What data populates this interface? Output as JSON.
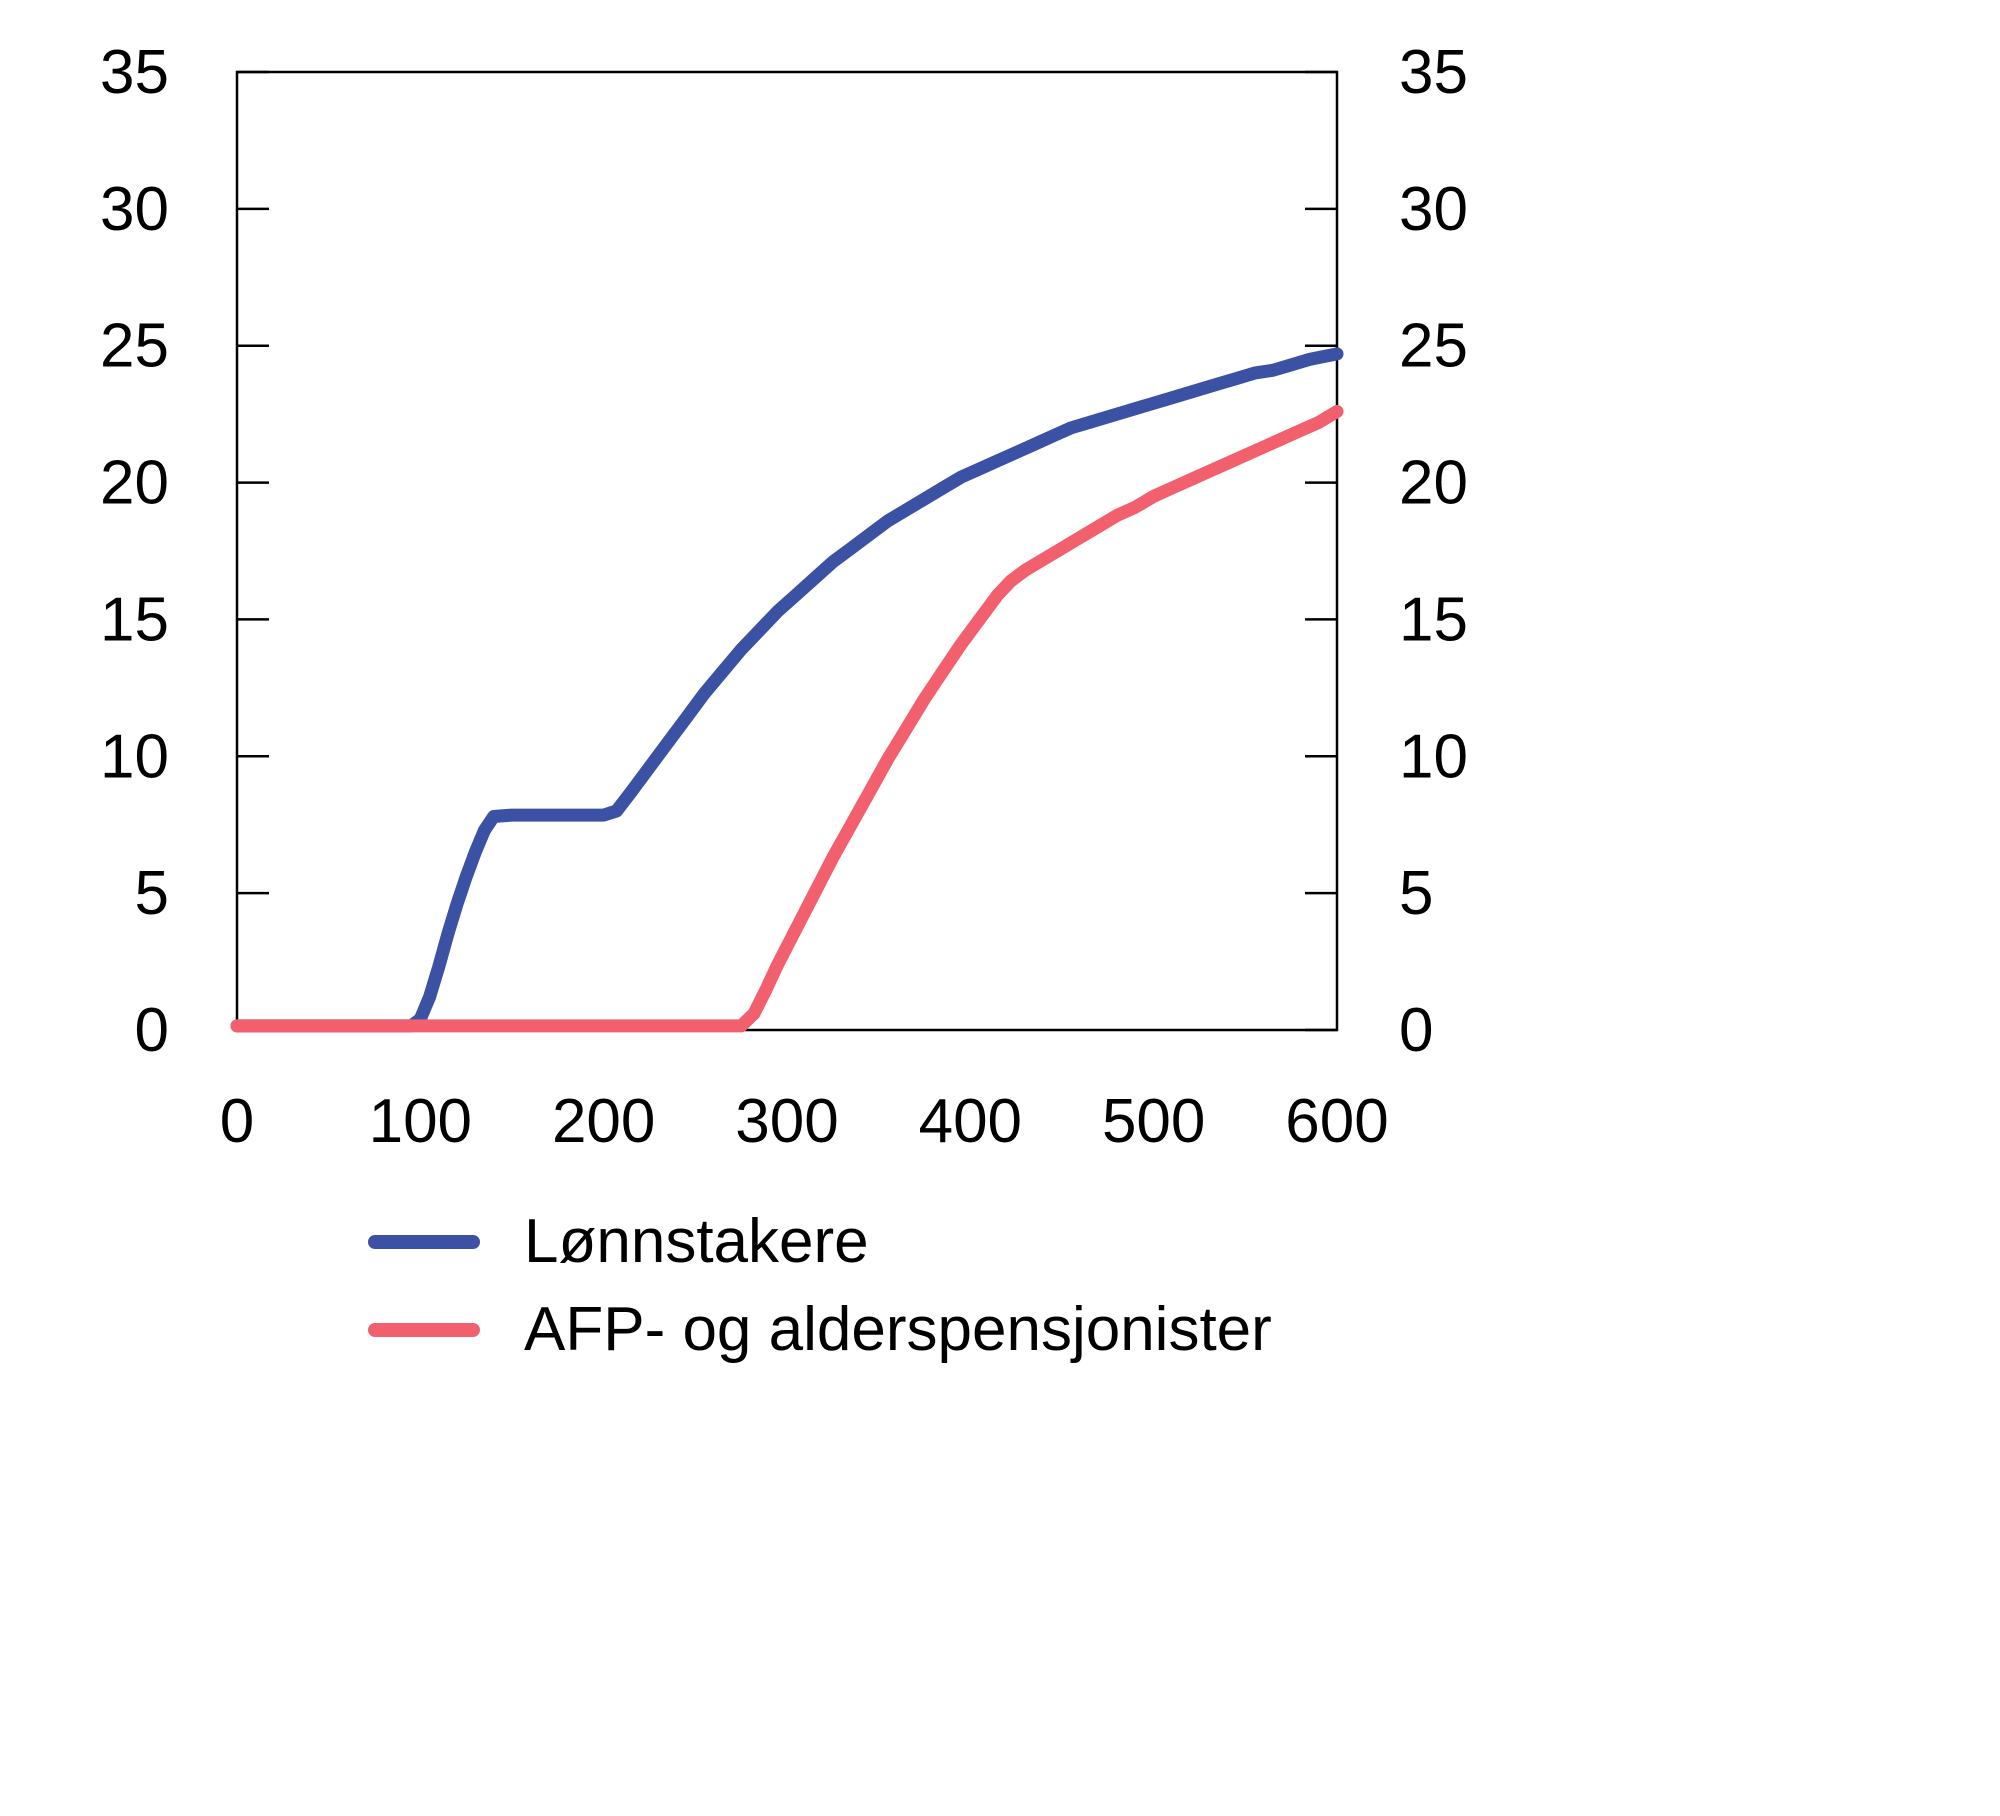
{
  "chart_data": {
    "type": "line",
    "title": "",
    "xlabel": "",
    "ylabel": "",
    "xlim": [
      0,
      600
    ],
    "ylim": [
      0,
      35
    ],
    "x_ticks": [
      0,
      100,
      200,
      300,
      400,
      500,
      600
    ],
    "y_ticks": [
      0,
      5,
      10,
      15,
      20,
      25,
      30,
      35
    ],
    "y_axis_right_mirror": true,
    "grid": false,
    "legend_position": "bottom-left",
    "series": [
      {
        "name": "Lønnstakere",
        "color": "#3b51a3",
        "points": [
          [
            0,
            0.15
          ],
          [
            95,
            0.15
          ],
          [
            100,
            0.4
          ],
          [
            105,
            1.2
          ],
          [
            110,
            2.3
          ],
          [
            115,
            3.5
          ],
          [
            120,
            4.6
          ],
          [
            125,
            5.6
          ],
          [
            130,
            6.5
          ],
          [
            135,
            7.3
          ],
          [
            140,
            7.8
          ],
          [
            150,
            7.85
          ],
          [
            200,
            7.85
          ],
          [
            207,
            8.0
          ],
          [
            215,
            8.7
          ],
          [
            225,
            9.6
          ],
          [
            235,
            10.5
          ],
          [
            245,
            11.4
          ],
          [
            255,
            12.3
          ],
          [
            265,
            13.1
          ],
          [
            275,
            13.9
          ],
          [
            285,
            14.6
          ],
          [
            295,
            15.3
          ],
          [
            305,
            15.9
          ],
          [
            315,
            16.5
          ],
          [
            325,
            17.1
          ],
          [
            335,
            17.6
          ],
          [
            345,
            18.1
          ],
          [
            355,
            18.6
          ],
          [
            365,
            19.0
          ],
          [
            375,
            19.4
          ],
          [
            385,
            19.8
          ],
          [
            395,
            20.2
          ],
          [
            405,
            20.5
          ],
          [
            415,
            20.8
          ],
          [
            425,
            21.1
          ],
          [
            435,
            21.4
          ],
          [
            445,
            21.7
          ],
          [
            455,
            22.0
          ],
          [
            465,
            22.2
          ],
          [
            475,
            22.4
          ],
          [
            485,
            22.6
          ],
          [
            495,
            22.8
          ],
          [
            505,
            23.0
          ],
          [
            515,
            23.2
          ],
          [
            525,
            23.4
          ],
          [
            535,
            23.6
          ],
          [
            545,
            23.8
          ],
          [
            555,
            24.0
          ],
          [
            565,
            24.1
          ],
          [
            575,
            24.3
          ],
          [
            585,
            24.5
          ],
          [
            600,
            24.7
          ]
        ]
      },
      {
        "name": "AFP- og alderspensjonister",
        "color": "#f1606c",
        "points": [
          [
            0,
            0.15
          ],
          [
            275,
            0.15
          ],
          [
            282,
            0.6
          ],
          [
            288,
            1.4
          ],
          [
            295,
            2.4
          ],
          [
            305,
            3.7
          ],
          [
            315,
            5.0
          ],
          [
            325,
            6.3
          ],
          [
            335,
            7.5
          ],
          [
            345,
            8.7
          ],
          [
            355,
            9.9
          ],
          [
            365,
            11.0
          ],
          [
            375,
            12.1
          ],
          [
            385,
            13.1
          ],
          [
            395,
            14.1
          ],
          [
            405,
            15.0
          ],
          [
            415,
            15.9
          ],
          [
            422,
            16.4
          ],
          [
            430,
            16.8
          ],
          [
            440,
            17.2
          ],
          [
            450,
            17.6
          ],
          [
            460,
            18.0
          ],
          [
            470,
            18.4
          ],
          [
            480,
            18.8
          ],
          [
            490,
            19.1
          ],
          [
            500,
            19.5
          ],
          [
            510,
            19.8
          ],
          [
            520,
            20.1
          ],
          [
            530,
            20.4
          ],
          [
            540,
            20.7
          ],
          [
            550,
            21.0
          ],
          [
            560,
            21.3
          ],
          [
            570,
            21.6
          ],
          [
            580,
            21.9
          ],
          [
            590,
            22.2
          ],
          [
            600,
            22.6
          ]
        ]
      }
    ]
  }
}
